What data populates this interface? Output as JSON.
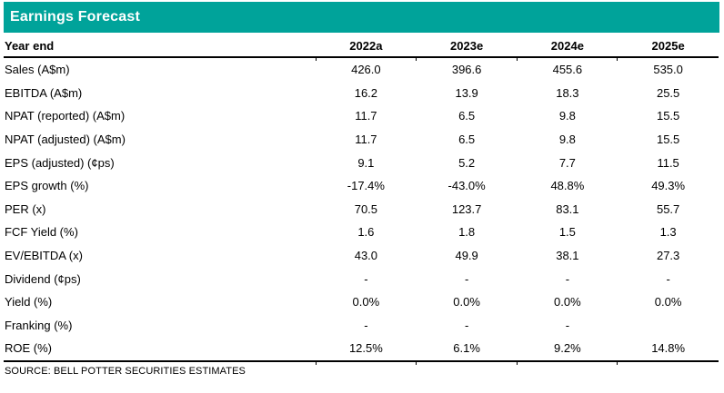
{
  "title": "Earnings Forecast",
  "colors": {
    "teal": "#00A39A",
    "title_text": "#FFFFFF",
    "body_text": "#000000"
  },
  "table": {
    "header": {
      "label": "Year end",
      "years": [
        "2022a",
        "2023e",
        "2024e",
        "2025e"
      ]
    },
    "rows": [
      {
        "label": "Sales (A$m)",
        "values": [
          "426.0",
          "396.6",
          "455.6",
          "535.0"
        ]
      },
      {
        "label": "EBITDA (A$m)",
        "values": [
          "16.2",
          "13.9",
          "18.3",
          "25.5"
        ]
      },
      {
        "label": "NPAT (reported) (A$m)",
        "values": [
          "11.7",
          "6.5",
          "9.8",
          "15.5"
        ]
      },
      {
        "label": "NPAT (adjusted) (A$m)",
        "values": [
          "11.7",
          "6.5",
          "9.8",
          "15.5"
        ]
      },
      {
        "label": "EPS (adjusted) (¢ps)",
        "values": [
          "9.1",
          "5.2",
          "7.7",
          "11.5"
        ]
      },
      {
        "label": "EPS growth (%)",
        "values": [
          "-17.4%",
          "-43.0%",
          "48.8%",
          "49.3%"
        ]
      },
      {
        "label": "PER (x)",
        "values": [
          "70.5",
          "123.7",
          "83.1",
          "55.7"
        ]
      },
      {
        "label": "FCF Yield (%)",
        "values": [
          "1.6",
          "1.8",
          "1.5",
          "1.3"
        ]
      },
      {
        "label": "EV/EBITDA (x)",
        "values": [
          "43.0",
          "49.9",
          "38.1",
          "27.3"
        ]
      },
      {
        "label": "Dividend (¢ps)",
        "values": [
          "-",
          "-",
          "-",
          "-"
        ]
      },
      {
        "label": "Yield (%)",
        "values": [
          "0.0%",
          "0.0%",
          "0.0%",
          "0.0%"
        ]
      },
      {
        "label": "Franking (%)",
        "values": [
          "-",
          "-",
          "-",
          ""
        ]
      },
      {
        "label": "ROE (%)",
        "values": [
          "12.5%",
          "6.1%",
          "9.2%",
          "14.8%"
        ]
      }
    ]
  },
  "source": "SOURCE: BELL POTTER SECURITIES ESTIMATES"
}
